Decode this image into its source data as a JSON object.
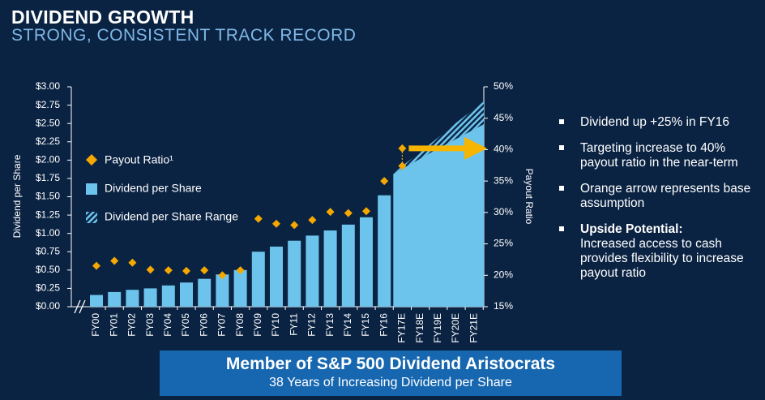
{
  "header": {
    "title": "DIVIDEND GROWTH",
    "subtitle": "STRONG, CONSISTENT TRACK RECORD"
  },
  "chart_data": {
    "type": "bar",
    "categories": [
      "FY00",
      "FY01",
      "FY02",
      "FY03",
      "FY04",
      "FY05",
      "FY06",
      "FY07",
      "FY08",
      "FY09",
      "FY10",
      "FY11",
      "FY12",
      "FY13",
      "FY14",
      "FY15",
      "FY16",
      "FY17E",
      "FY18E",
      "FY19E",
      "FY20E",
      "FY21E"
    ],
    "series": [
      {
        "name": "Dividend per Share",
        "color": "#6cc4ec",
        "values": [
          0.16,
          0.2,
          0.23,
          0.25,
          0.29,
          0.33,
          0.38,
          0.44,
          0.5,
          0.75,
          0.82,
          0.9,
          0.97,
          1.04,
          1.12,
          1.22,
          1.52,
          1.88,
          2.02,
          2.16,
          2.29,
          2.42
        ]
      },
      {
        "name": "Dividend per Share Range",
        "color": "#6cc4ec",
        "values": [
          null,
          null,
          null,
          null,
          null,
          null,
          null,
          null,
          null,
          null,
          null,
          null,
          null,
          null,
          null,
          null,
          null,
          1.92,
          2.11,
          2.31,
          2.51,
          2.7
        ]
      },
      {
        "name": "Payout Ratio¹",
        "color": "#f5a800",
        "axis": "y2",
        "values": [
          21.5,
          22.3,
          22.0,
          20.9,
          20.8,
          20.7,
          20.8,
          20.0,
          20.8,
          29.0,
          28.2,
          28.0,
          28.8,
          30.1,
          29.9,
          30.2,
          35.0,
          37.4,
          null,
          null,
          null,
          null
        ]
      }
    ],
    "payout_target_values": [
      null,
      null,
      null,
      null,
      null,
      null,
      null,
      null,
      null,
      null,
      null,
      null,
      null,
      null,
      null,
      null,
      null,
      40.2,
      null,
      null,
      null,
      null
    ],
    "arrow_value": 40.2,
    "ylabel": "Dividend per Share",
    "y2label": "Payout Ratio",
    "ylim": [
      0,
      3
    ],
    "yticks": [
      {
        "value": 0,
        "label": "$0.00"
      },
      {
        "value": 0.25,
        "label": "$0.25"
      },
      {
        "value": 0.5,
        "label": "$0.50"
      },
      {
        "value": 0.75,
        "label": "$0.75"
      },
      {
        "value": 1,
        "label": "$1.00"
      },
      {
        "value": 1.25,
        "label": "$1.25"
      },
      {
        "value": 1.5,
        "label": "$1.50"
      },
      {
        "value": 1.75,
        "label": "$1.75"
      },
      {
        "value": 2,
        "label": "$2.00"
      },
      {
        "value": 2.25,
        "label": "$2.25"
      },
      {
        "value": 2.5,
        "label": "$2.50"
      },
      {
        "value": 2.75,
        "label": "$2.75"
      },
      {
        "value": 3,
        "label": "$3.00"
      }
    ],
    "y2lim": [
      15,
      50
    ],
    "y2ticks": [
      {
        "value": 15,
        "label": "15%"
      },
      {
        "value": 20,
        "label": "20%"
      },
      {
        "value": 25,
        "label": "25%"
      },
      {
        "value": 30,
        "label": "30%"
      },
      {
        "value": 35,
        "label": "35%"
      },
      {
        "value": 40,
        "label": "40%"
      },
      {
        "value": 45,
        "label": "45%"
      },
      {
        "value": 50,
        "label": "50%"
      }
    ],
    "arrow_color": "#f7b500"
  },
  "bullets": [
    {
      "text": "Dividend up +25% in FY16"
    },
    {
      "text": "Targeting increase to 40% payout ratio in the near-term"
    },
    {
      "text": "Orange arrow represents base assumption"
    },
    {
      "heading": "Upside Potential:",
      "text": "Increased access to cash provides flexibility to increase payout ratio"
    }
  ],
  "banner": {
    "title": "Member of S&P 500 Dividend Aristocrats",
    "subtitle": "38 Years of Increasing Dividend per Share"
  }
}
